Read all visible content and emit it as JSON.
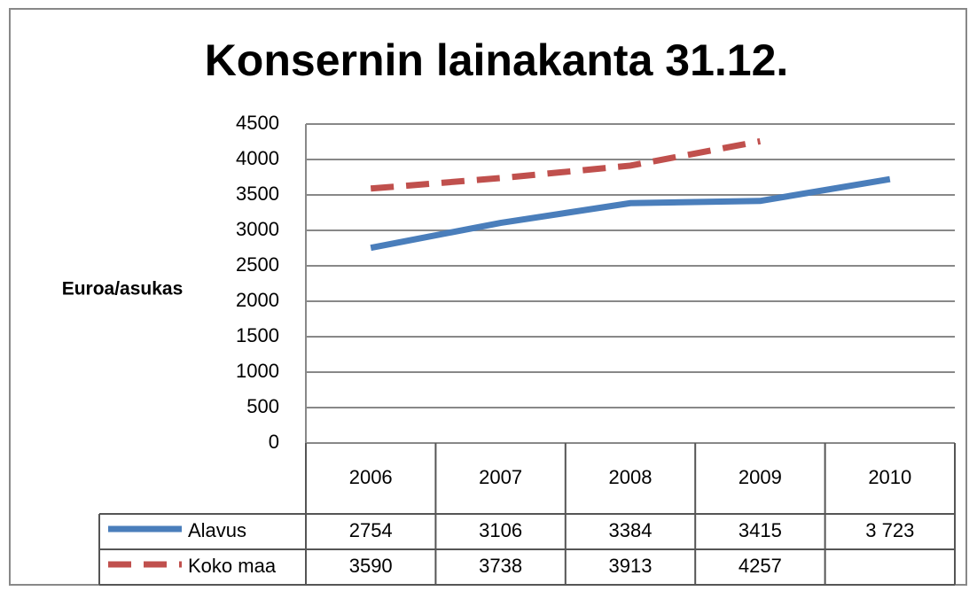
{
  "chart_data": {
    "type": "line",
    "title": "Konsernin lainakanta 31.12.",
    "y_label": "Euroa/asukas",
    "categories": [
      "2006",
      "2007",
      "2008",
      "2009",
      "2010"
    ],
    "series": [
      {
        "name": "Alavus",
        "color": "#4a7ebb",
        "dashed": false,
        "values": [
          2754,
          3106,
          3384,
          3415,
          3723
        ],
        "value_labels": [
          "2754",
          "3106",
          "3384",
          "3415",
          "3 723"
        ]
      },
      {
        "name": "Koko maa",
        "color": "#c0504d",
        "dashed": true,
        "values": [
          3590,
          3738,
          3913,
          4257,
          null
        ]
      }
    ],
    "ylim": [
      0,
      4500
    ],
    "yticks": [
      0,
      500,
      1000,
      1500,
      2000,
      2500,
      3000,
      3500,
      4000,
      4500
    ],
    "grid": true,
    "data_table": true
  }
}
